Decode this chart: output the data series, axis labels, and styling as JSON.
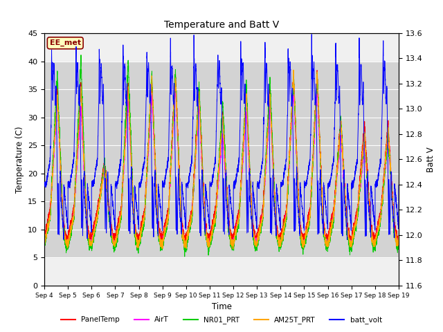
{
  "title": "Temperature and Batt V",
  "xlabel": "Time",
  "ylabel_left": "Temperature (C)",
  "ylabel_right": "Batt V",
  "ylim_left": [
    0,
    45
  ],
  "ylim_right": [
    11.6,
    13.6
  ],
  "gray_band": [
    5,
    40
  ],
  "x_tick_labels": [
    "Sep 4",
    "Sep 5",
    "Sep 6",
    "Sep 7",
    "Sep 8",
    "Sep 9",
    "Sep 10",
    "Sep 11",
    "Sep 12",
    "Sep 13",
    "Sep 14",
    "Sep 15",
    "Sep 16",
    "Sep 17",
    "Sep 18",
    "Sep 19"
  ],
  "legend_box_label": "EE_met",
  "legend_box_color": "#8B0000",
  "legend_box_fill": "#FFFFC0",
  "series_colors": {
    "PanelTemp": "#FF0000",
    "AirT": "#FF00FF",
    "NR01_PRT": "#00CC00",
    "AM25T_PRT": "#FFA500",
    "batt_volt": "#0000FF"
  },
  "background_color": "#FFFFFF",
  "plot_bg_color": "#F0F0F0",
  "n_days": 15,
  "pts_per_day": 288
}
